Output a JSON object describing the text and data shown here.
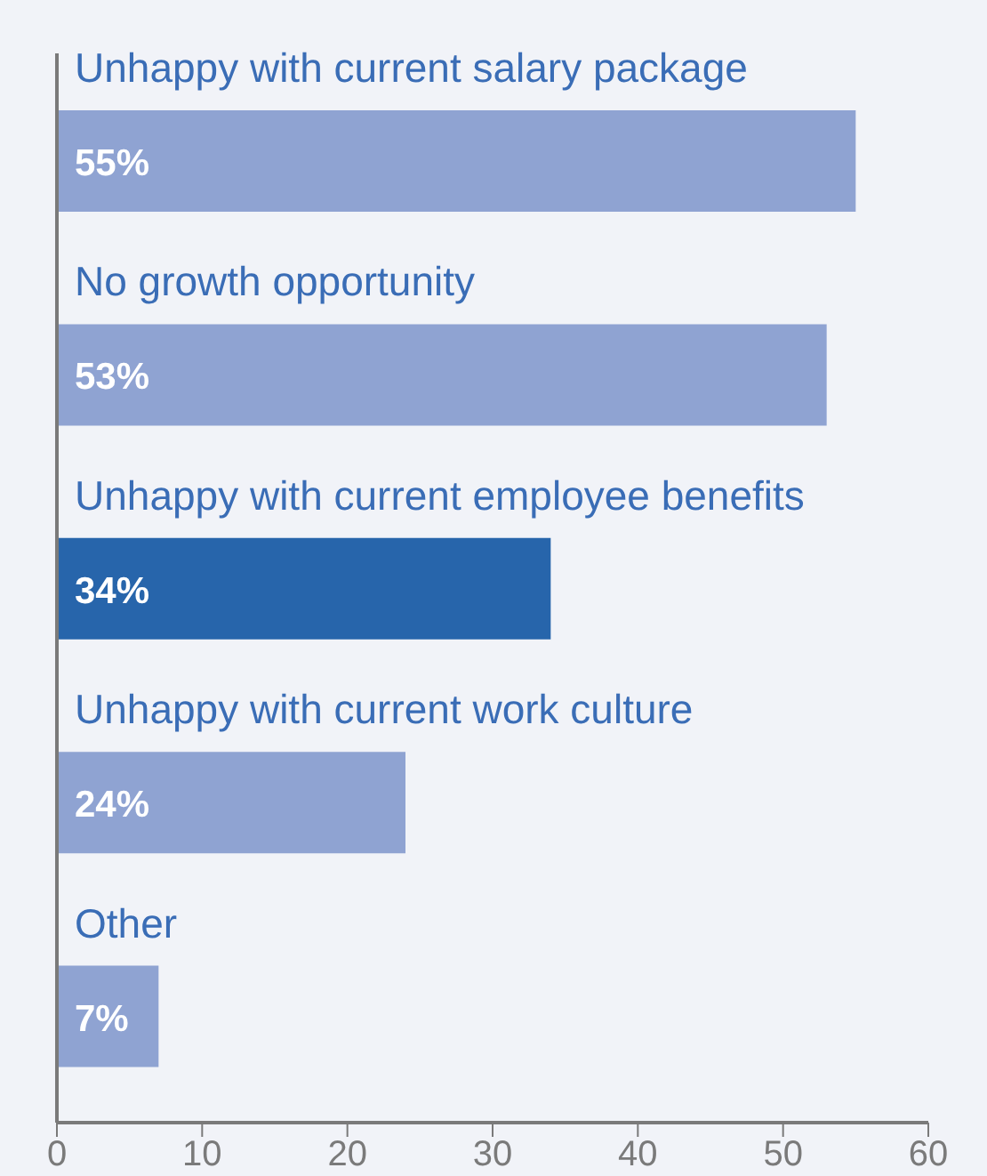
{
  "chart_data": {
    "type": "bar",
    "orientation": "horizontal",
    "categories": [
      "Unhappy with current salary package",
      "No growth opportunity",
      "Unhappy with current employee benefits",
      "Unhappy with current work culture",
      "Other"
    ],
    "values": [
      55,
      53,
      34,
      24,
      7
    ],
    "colors": [
      "#8fa3d2",
      "#8fa3d2",
      "#2765ab",
      "#8fa3d2",
      "#8fa3d2"
    ],
    "value_labels": [
      "55%",
      "53%",
      "34%",
      "24%",
      "7%"
    ],
    "xlim": [
      0,
      60
    ],
    "xticks": [
      0,
      10,
      20,
      30,
      40,
      50,
      60
    ],
    "grid": false
  }
}
